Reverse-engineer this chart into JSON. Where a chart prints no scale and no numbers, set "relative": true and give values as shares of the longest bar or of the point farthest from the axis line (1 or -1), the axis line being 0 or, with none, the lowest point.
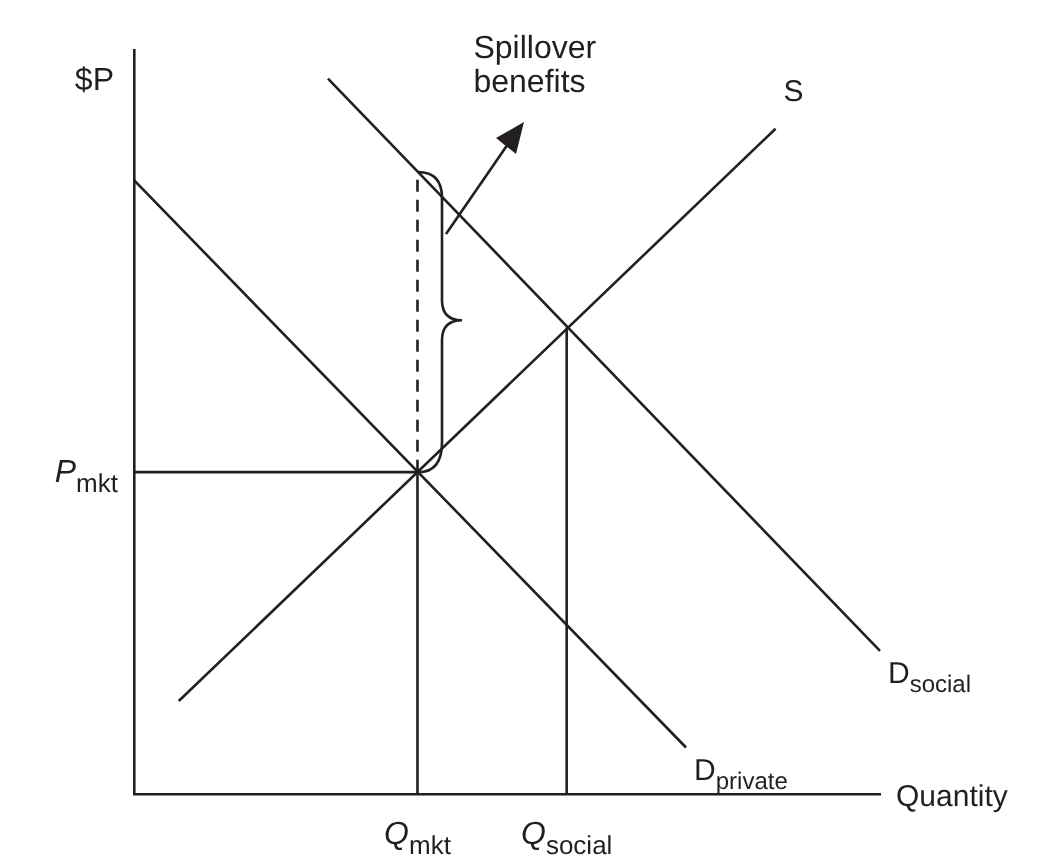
{
  "chart_data": {
    "type": "line",
    "relative": true,
    "ylabel": "$P",
    "xlabel": "Quantity",
    "categories": [
      null,
      null,
      null,
      null,
      null,
      null,
      null,
      null,
      null,
      null,
      null,
      null,
      null,
      null,
      null,
      null,
      null,
      null,
      null,
      "Q$_{mkt}$",
      null,
      null,
      null,
      null,
      null,
      null,
      null,
      null,
      null,
      "Q$_{social}$",
      null,
      null,
      null,
      null,
      null,
      null,
      null,
      null,
      null,
      null,
      null,
      null,
      null,
      null,
      null,
      null,
      null,
      null,
      null,
      null,
      null
    ],
    "annotations": [
      "Spillover benefits"
    ],
    "ref_lines": [
      {
        "axis": "y",
        "value": 0.45,
        "label": "P$_{mkt}$"
      },
      {
        "axis": "x",
        "value": "Q$_{mkt}$"
      },
      {
        "axis": "x",
        "value": "Q$_{social}$"
      },
      {
        "axis": "x",
        "value": "Q$_{mkt}$",
        "line_style": "dashed"
      }
    ],
    "series": [
      {
        "name": "D$_{private}$",
        "color": "#231f20",
        "values": [
          0.858,
          null,
          null,
          null,
          null,
          null,
          null,
          null,
          null,
          null,
          null,
          null,
          null,
          null,
          null,
          null,
          null,
          null,
          null,
          null,
          null,
          null,
          null,
          null,
          null,
          null,
          null,
          null,
          null,
          null,
          null,
          null,
          null,
          null,
          null,
          null,
          null,
          0.065,
          null,
          null,
          null,
          null,
          null,
          null,
          null,
          null,
          null,
          null,
          null,
          null,
          null
        ]
      },
      {
        "name": "S",
        "color": "#231f20",
        "values": [
          null,
          null,
          null,
          0.13,
          null,
          null,
          null,
          null,
          null,
          null,
          null,
          null,
          null,
          null,
          null,
          null,
          null,
          null,
          null,
          null,
          null,
          null,
          null,
          null,
          null,
          null,
          null,
          null,
          null,
          null,
          null,
          null,
          null,
          null,
          null,
          null,
          null,
          null,
          null,
          null,
          null,
          null,
          null,
          0.93,
          null,
          null,
          null,
          null,
          null,
          null,
          null
        ]
      },
      {
        "name": "D$_{social}$",
        "color": "#231f20",
        "values": [
          null,
          null,
          null,
          null,
          null,
          null,
          null,
          null,
          null,
          null,
          null,
          null,
          null,
          1,
          null,
          null,
          null,
          null,
          null,
          null,
          null,
          null,
          null,
          null,
          null,
          null,
          null,
          null,
          null,
          null,
          null,
          null,
          null,
          null,
          null,
          null,
          null,
          null,
          null,
          null,
          null,
          null,
          null,
          null,
          null,
          null,
          null,
          null,
          null,
          null,
          0.2
        ]
      }
    ],
    "grid": false,
    "legend": false,
    "marker": "none",
    "line_style": "solid"
  }
}
